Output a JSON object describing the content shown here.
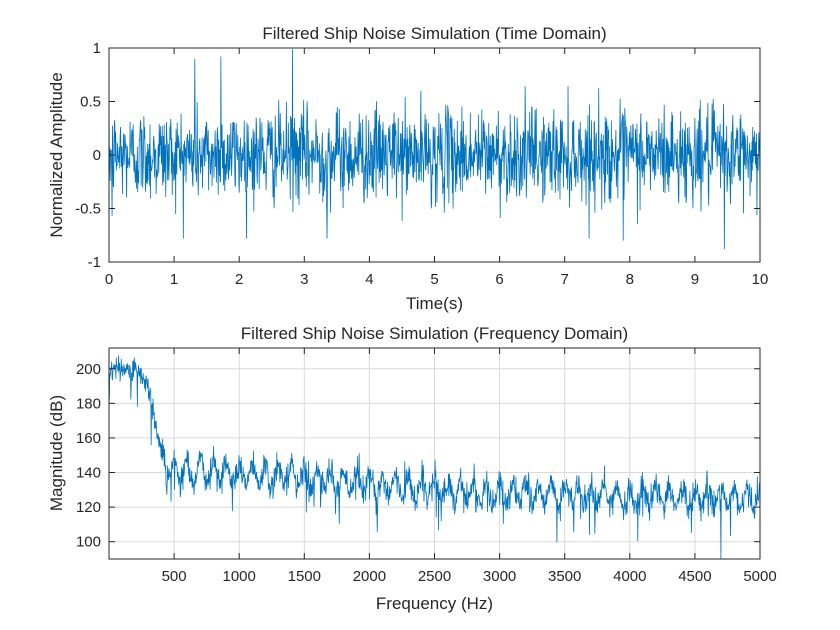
{
  "colors": {
    "series": "#0072BD",
    "axis": "#262626",
    "grid": "#d9d9d9"
  },
  "chart_data": [
    {
      "type": "line",
      "title": "Filtered Ship Noise Simulation (Time Domain)",
      "xlabel": "Time(s)",
      "ylabel": "Normalized Amplitude",
      "xlim": [
        0,
        10
      ],
      "ylim": [
        -1,
        1
      ],
      "grid": false,
      "xticks": [
        0,
        1,
        2,
        3,
        4,
        5,
        6,
        7,
        8,
        9,
        10
      ],
      "xtick_labels": [
        "0",
        "1",
        "2",
        "3",
        "4",
        "5",
        "6",
        "7",
        "8",
        "9",
        "10"
      ],
      "yticks": [
        -1,
        -0.5,
        0,
        0.5,
        1
      ],
      "ytick_labels": [
        "-1",
        "-0.5",
        "0",
        "0.5",
        "1"
      ],
      "series": [
        {
          "style": "dense noise centered at 0",
          "typical_range": [
            -0.45,
            0.45
          ],
          "extremes": [
            {
              "x": 2.82,
              "y": 0.99
            },
            {
              "x": 9.45,
              "y": -0.88
            },
            {
              "x": 1.32,
              "y": 0.9
            },
            {
              "x": 0.05,
              "y": -0.57
            },
            {
              "x": 3.35,
              "y": -0.78
            },
            {
              "x": 7.9,
              "y": -0.8
            },
            {
              "x": 1.72,
              "y": 0.92
            }
          ]
        }
      ]
    },
    {
      "type": "line",
      "title": "Filtered Ship Noise Simulation (Frequency Domain)",
      "xlabel": "Frequency (Hz)",
      "ylabel": "Magnitude (dB)",
      "xlim": [
        0,
        5000
      ],
      "ylim": [
        90,
        212
      ],
      "grid": true,
      "xticks": [
        500,
        1000,
        1500,
        2000,
        2500,
        3000,
        3500,
        4000,
        4500,
        5000
      ],
      "xtick_labels": [
        "500",
        "1000",
        "1500",
        "2000",
        "2500",
        "3000",
        "3500",
        "4000",
        "4500",
        "5000"
      ],
      "yticks": [
        100,
        120,
        140,
        160,
        180,
        200
      ],
      "ytick_labels": [
        "100",
        "120",
        "140",
        "160",
        "180",
        "200"
      ],
      "series": [
        {
          "style": "dense spectrum with periodic ripples",
          "envelope": [
            {
              "x": 0,
              "y": 200
            },
            {
              "x": 200,
              "y": 200
            },
            {
              "x": 300,
              "y": 190
            },
            {
              "x": 380,
              "y": 160
            },
            {
              "x": 450,
              "y": 142
            },
            {
              "x": 1000,
              "y": 140
            },
            {
              "x": 2000,
              "y": 133
            },
            {
              "x": 3000,
              "y": 128
            },
            {
              "x": 4000,
              "y": 126
            },
            {
              "x": 5000,
              "y": 125
            }
          ],
          "ripple_spacing_hz": 100,
          "minimum": {
            "x": 4700,
            "y": 90
          }
        }
      ]
    }
  ]
}
